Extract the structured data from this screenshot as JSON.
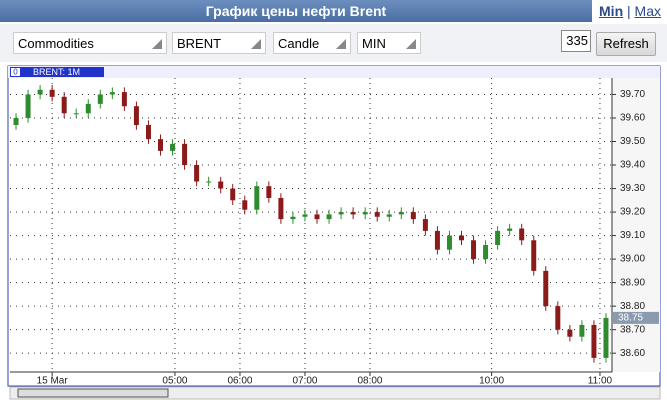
{
  "header": {
    "title": "График цены нефти Brent",
    "links": [
      "Min",
      "Max"
    ]
  },
  "controls": {
    "selects": [
      "Commodities",
      "BRENT",
      "Candle",
      "MIN"
    ],
    "input": "335",
    "button": "Refresh"
  },
  "chart_data": {
    "type": "candlestick",
    "legend": "BRENT: 1M",
    "legend_index": "0",
    "up_color": "#2e8b2e",
    "down_color": "#8b1a1a",
    "grid": true,
    "xlim": [
      -0.5,
      49.5
    ],
    "xticks": [
      {
        "value": 3,
        "label": "15 Mar"
      },
      {
        "value": 13.2,
        "label": "05:00"
      },
      {
        "value": 18.6,
        "label": "06:00"
      },
      {
        "value": 24,
        "label": "07:00"
      },
      {
        "value": 29.4,
        "label": "08:00"
      },
      {
        "value": 39.5,
        "label": "10:00"
      },
      {
        "value": 48.5,
        "label": "11:00"
      }
    ],
    "ylim": [
      38.52,
      39.77
    ],
    "yticks": [
      {
        "value": 39.7,
        "label": "39.70"
      },
      {
        "value": 39.6,
        "label": "39.60"
      },
      {
        "value": 39.5,
        "label": "39.50"
      },
      {
        "value": 39.4,
        "label": "39.40"
      },
      {
        "value": 39.3,
        "label": "39.30"
      },
      {
        "value": 39.2,
        "label": "39.20"
      },
      {
        "value": 39.1,
        "label": "39.10"
      },
      {
        "value": 39.0,
        "label": "39.00"
      },
      {
        "value": 38.9,
        "label": "38.90"
      },
      {
        "value": 38.8,
        "label": "38.80"
      },
      {
        "value": 38.7,
        "label": "38.70"
      },
      {
        "value": 38.6,
        "label": "38.60"
      }
    ],
    "last_price": 38.75,
    "open": [
      39.57,
      39.6,
      39.7,
      39.72,
      39.69,
      39.62,
      39.62,
      39.66,
      39.7,
      39.71,
      39.65,
      39.57,
      39.51,
      39.46,
      39.49,
      39.4,
      39.33,
      39.33,
      39.3,
      39.25,
      39.21,
      39.31,
      39.26,
      39.17,
      39.18,
      39.19,
      39.17,
      39.19,
      39.2,
      39.19,
      39.2,
      39.18,
      39.19,
      39.2,
      39.17,
      39.12,
      39.04,
      39.1,
      39.08,
      39.0,
      39.06,
      39.12,
      39.13,
      39.08,
      38.95,
      38.8,
      38.7,
      38.67,
      38.72,
      38.58
    ],
    "high": [
      39.62,
      39.72,
      39.74,
      39.74,
      39.71,
      39.64,
      39.68,
      39.72,
      39.73,
      39.73,
      39.67,
      39.59,
      39.53,
      39.51,
      39.51,
      39.42,
      39.35,
      39.35,
      39.32,
      39.27,
      39.33,
      39.33,
      39.28,
      39.2,
      39.21,
      39.21,
      39.21,
      39.22,
      39.22,
      39.22,
      39.22,
      39.21,
      39.22,
      39.22,
      39.19,
      39.14,
      39.12,
      39.12,
      39.1,
      39.08,
      39.14,
      39.15,
      39.15,
      39.1,
      38.97,
      38.82,
      38.72,
      38.74,
      38.74,
      38.77
    ],
    "low": [
      39.55,
      39.58,
      39.68,
      39.67,
      39.6,
      39.6,
      39.6,
      39.64,
      39.68,
      39.63,
      39.55,
      39.49,
      39.44,
      39.44,
      39.38,
      39.31,
      39.31,
      39.28,
      39.23,
      39.19,
      39.19,
      39.24,
      39.15,
      39.15,
      39.16,
      39.15,
      39.15,
      39.17,
      39.17,
      39.17,
      39.16,
      39.16,
      39.17,
      39.15,
      39.1,
      39.02,
      39.02,
      39.06,
      38.98,
      38.98,
      39.04,
      39.1,
      39.06,
      38.93,
      38.78,
      38.68,
      38.65,
      38.65,
      38.56,
      38.56
    ],
    "close": [
      39.6,
      39.7,
      39.72,
      39.69,
      39.62,
      39.62,
      39.66,
      39.7,
      39.71,
      39.65,
      39.57,
      39.51,
      39.46,
      39.49,
      39.4,
      39.33,
      39.33,
      39.3,
      39.25,
      39.21,
      39.31,
      39.26,
      39.17,
      39.18,
      39.19,
      39.17,
      39.19,
      39.2,
      39.19,
      39.2,
      39.18,
      39.19,
      39.2,
      39.17,
      39.12,
      39.04,
      39.1,
      39.08,
      39.0,
      39.06,
      39.12,
      39.13,
      39.08,
      38.95,
      38.8,
      38.7,
      38.67,
      38.72,
      38.58,
      38.75
    ]
  }
}
